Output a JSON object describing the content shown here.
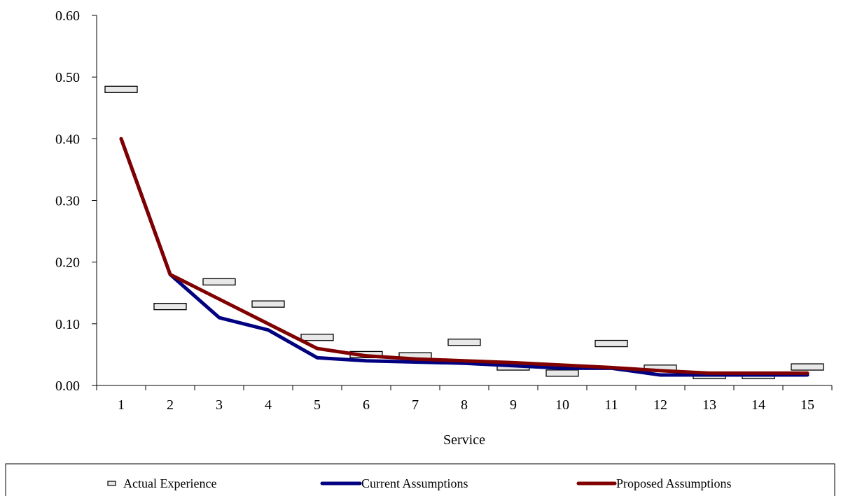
{
  "chart_data": {
    "type": "line",
    "xlabel": "Service",
    "ylabel": "",
    "title": "",
    "categories": [
      "1",
      "2",
      "3",
      "4",
      "5",
      "6",
      "7",
      "8",
      "9",
      "10",
      "11",
      "12",
      "13",
      "14",
      "15"
    ],
    "ylim": [
      0,
      0.6
    ],
    "yticks": [
      "0.00",
      "0.10",
      "0.20",
      "0.30",
      "0.40",
      "0.50",
      "0.60"
    ],
    "grid": false,
    "legend_position": "bottom",
    "series": [
      {
        "name": "Actual Experience",
        "style": "marker",
        "color": "#e8e8e8",
        "values": [
          0.48,
          0.128,
          0.168,
          0.132,
          0.078,
          0.05,
          0.048,
          0.07,
          0.03,
          0.02,
          0.068,
          0.028,
          0.016,
          0.016,
          0.03
        ]
      },
      {
        "name": "Current Assumptions",
        "style": "line",
        "color": "#000080",
        "values": [
          0.4,
          0.18,
          0.11,
          0.09,
          0.045,
          0.04,
          0.038,
          0.036,
          0.032,
          0.028,
          0.028,
          0.017,
          0.017,
          0.017,
          0.017
        ]
      },
      {
        "name": "Proposed Assumptions",
        "style": "line",
        "color": "#800000",
        "values": [
          0.4,
          0.18,
          0.14,
          0.1,
          0.06,
          0.048,
          0.043,
          0.04,
          0.037,
          0.033,
          0.029,
          0.024,
          0.02,
          0.02,
          0.02
        ]
      }
    ]
  }
}
